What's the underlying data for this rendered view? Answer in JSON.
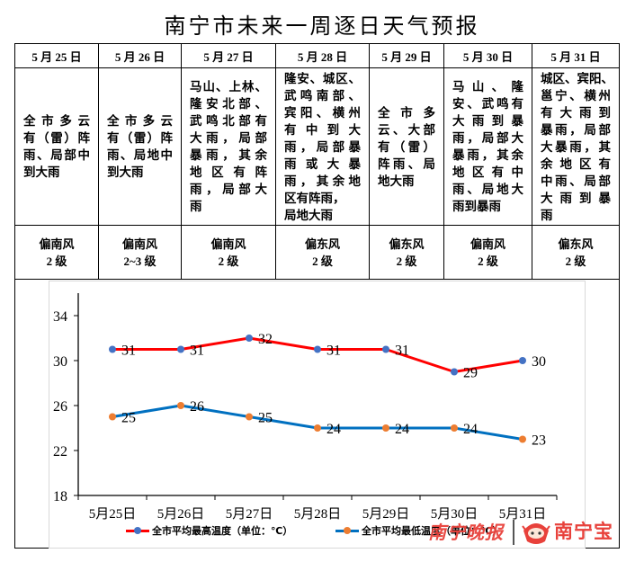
{
  "title": "南宁市未来一周逐日天气预报",
  "table": {
    "days": [
      {
        "date": "5 月 25 日",
        "forecast_lines": [
          "全市多云",
          "有（雷）阵",
          "雨、局部中",
          "到大雨"
        ],
        "wind_dir": "偏南风",
        "wind_level": "2 级"
      },
      {
        "date": "5 月 26 日",
        "forecast_lines": [
          "全市多云",
          "有（雷）阵",
          "雨、局地中",
          "到大雨"
        ],
        "wind_dir": "偏南风",
        "wind_level": "2~3 级"
      },
      {
        "date": "5 月 27 日",
        "forecast_lines": [
          "马山、上林、",
          "隆安北部、",
          "武鸣北部有",
          "大雨，局部",
          "暴雨，其余",
          "地区有阵",
          "雨，局部大",
          "雨"
        ],
        "wind_dir": "偏南风",
        "wind_level": "2 级"
      },
      {
        "date": "5 月 28 日",
        "forecast_lines": [
          "隆安、城区、",
          "武鸣南部、",
          "宾阳、横州",
          "有中到大",
          "雨，局部暴",
          "雨或大暴",
          "雨，其余地",
          "区有阵雨，",
          "局地大雨"
        ],
        "wind_dir": "偏东风",
        "wind_level": "2 级"
      },
      {
        "date": "5 月 29 日",
        "forecast_lines": [
          "全市多",
          "云、大部",
          "有（雷）",
          "阵雨、局",
          "地大雨"
        ],
        "wind_dir": "偏东风",
        "wind_level": "2 级"
      },
      {
        "date": "5 月 30 日",
        "forecast_lines": [
          "马山、隆",
          "安、武鸣有",
          "大雨到暴",
          "雨，局部大",
          "暴雨，其余",
          "地区有中",
          "雨、局地大",
          "雨到暴雨"
        ],
        "wind_dir": "偏南风",
        "wind_level": "2 级"
      },
      {
        "date": "5 月 31 日",
        "forecast_lines": [
          "城区、宾阳、",
          "邕宁、横州",
          "有大雨到",
          "暴雨，局部",
          "大暴雨，其",
          "余地区有",
          "中雨、局部",
          "大雨到暴",
          "雨"
        ],
        "wind_dir": "偏东风",
        "wind_level": "2 级"
      }
    ]
  },
  "chart_data": {
    "type": "line",
    "title": "",
    "xlabel": "",
    "ylabel": "",
    "categories": [
      "5月25日",
      "5月26日",
      "5月27日",
      "5月28日",
      "5月29日",
      "5月30日",
      "5月31日"
    ],
    "series": [
      {
        "name": "全市平均最高温度（单位：℃）",
        "values": [
          31,
          31,
          32,
          31,
          31,
          29,
          30
        ],
        "line_color": "#ff0000",
        "marker_color": "#4472c4"
      },
      {
        "name": "全市平均最低温度（单位：℃）",
        "values": [
          25,
          26,
          25,
          24,
          24,
          24,
          23
        ],
        "line_color": "#0070c0",
        "marker_color": "#ed7d31"
      }
    ],
    "yticks": [
      18,
      22,
      26,
      30,
      34
    ],
    "ylim": [
      18,
      36
    ],
    "grid": false,
    "data_labels": true,
    "legend_position": "bottom"
  },
  "watermark": {
    "newspaper": "南宁晚报",
    "app": "南宁宝",
    "color": "#e8413b"
  }
}
